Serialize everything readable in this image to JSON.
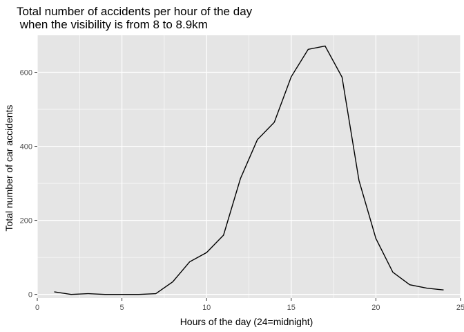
{
  "chart_data": {
    "type": "line",
    "title_line1": "Total number of accidents per hour of the day",
    "title_line2": " when the visibility is from 8 to 8.9km",
    "xlabel": "Hours of the day (24=midnight)",
    "ylabel": "Total number of car accidents",
    "xlim": [
      0,
      25
    ],
    "ylim": [
      -10,
      700
    ],
    "x_ticks": [
      0,
      5,
      10,
      15,
      20,
      25
    ],
    "y_ticks": [
      0,
      200,
      400,
      600
    ],
    "grid": true,
    "series": [
      {
        "x": [
          1,
          2,
          3,
          4,
          5,
          6,
          7,
          8,
          9,
          10,
          11,
          12,
          13,
          14,
          15,
          16,
          17,
          18,
          19,
          20,
          21,
          22,
          23,
          24
        ],
        "values": [
          7,
          0,
          2,
          0,
          0,
          0,
          2,
          34,
          88,
          113,
          160,
          313,
          418,
          465,
          588,
          662,
          671,
          587,
          308,
          151,
          60,
          26,
          17,
          12
        ],
        "color": "#000000"
      }
    ],
    "colors": {
      "panel": "#e5e5e5",
      "grid": "#ffffff",
      "line": "#000000",
      "tick": "#4d4d4d"
    }
  }
}
